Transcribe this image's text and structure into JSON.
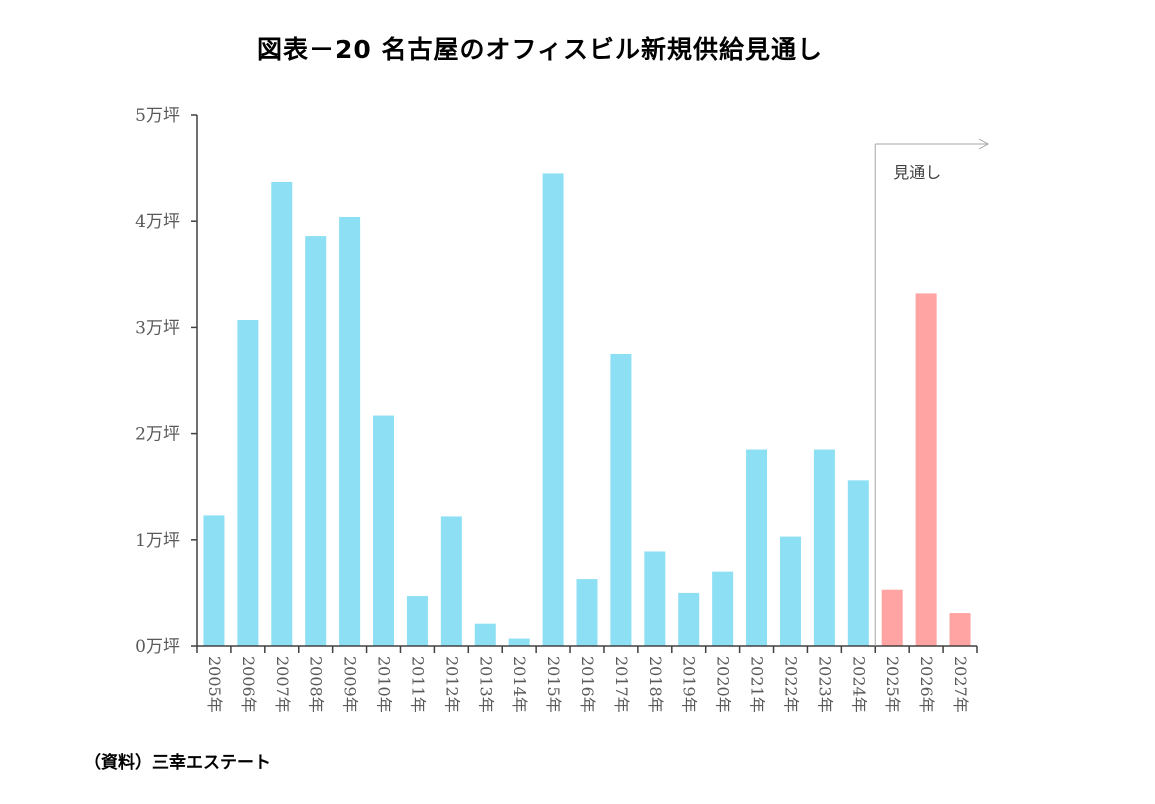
{
  "chart_data": {
    "type": "bar",
    "title": "図表－20  名古屋のオフィスビル新規供給見通し",
    "xlabel": "",
    "ylabel": "",
    "y_tick_labels": [
      "0万坪",
      "1万坪",
      "2万坪",
      "3万坪",
      "4万坪",
      "5万坪"
    ],
    "y_ticks": [
      0,
      1,
      2,
      3,
      4,
      5
    ],
    "ylim": [
      0,
      5
    ],
    "categories": [
      "2005年",
      "2006年",
      "2007年",
      "2008年",
      "2009年",
      "2010年",
      "2011年",
      "2012年",
      "2013年",
      "2014年",
      "2015年",
      "2016年",
      "2017年",
      "2018年",
      "2019年",
      "2020年",
      "2021年",
      "2022年",
      "2023年",
      "2024年",
      "2025年",
      "2026年",
      "2027年"
    ],
    "values": [
      1.23,
      3.07,
      4.37,
      3.86,
      4.04,
      2.17,
      0.47,
      1.22,
      0.21,
      0.07,
      4.45,
      0.63,
      2.75,
      0.89,
      0.5,
      0.7,
      1.85,
      1.03,
      1.85,
      1.56,
      0.53,
      3.32,
      0.31
    ],
    "forecast_start": "2025年",
    "forecast_label": "見通し",
    "grid": false,
    "legend": "none",
    "colors": {
      "actual": "#8ddff4",
      "forecast": "#ffa3a3",
      "axis": "#404040",
      "forecast_marker": "#a6a6a6"
    },
    "source_note": "（資料）三幸エステート"
  }
}
